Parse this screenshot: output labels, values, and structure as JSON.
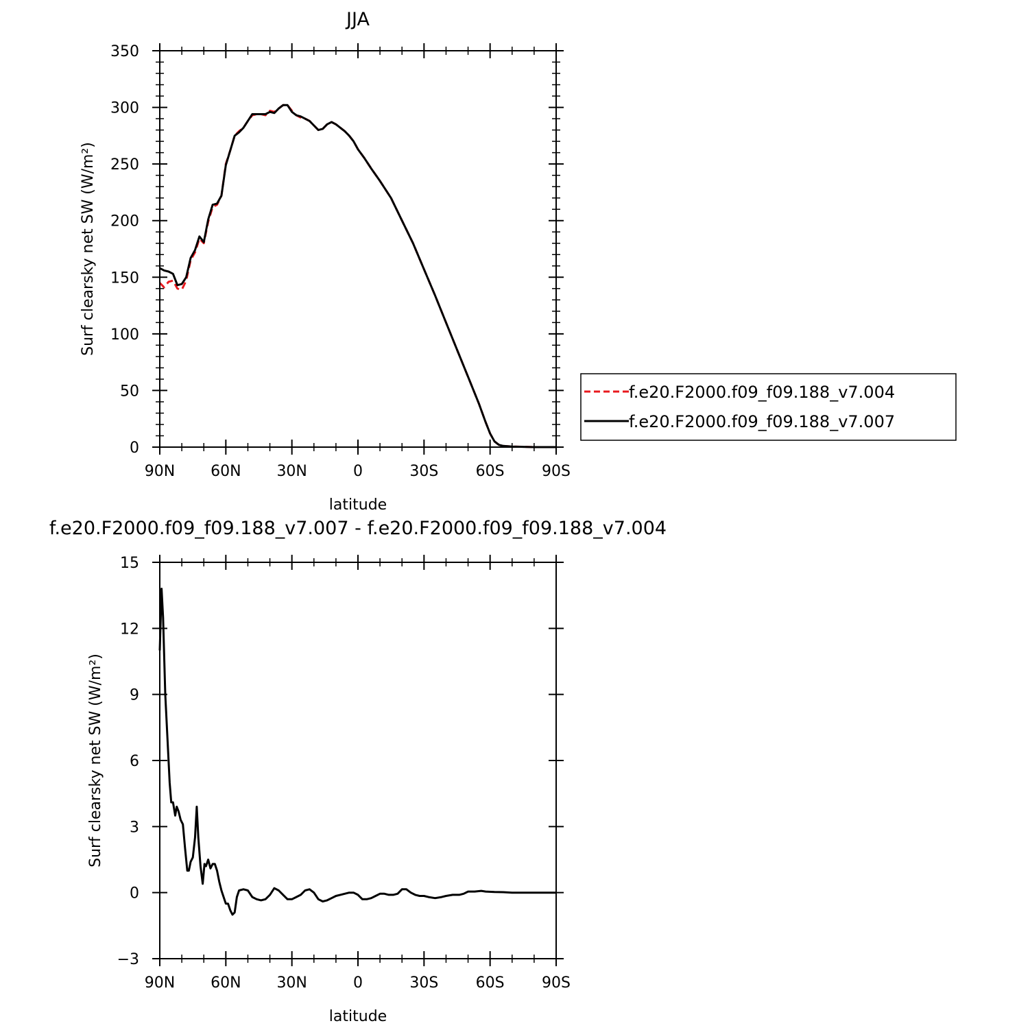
{
  "chart_data": [
    {
      "type": "line",
      "title": "JJA",
      "xlabel": "latitude",
      "ylabel": "Surf clearsky net SW (W/m²)",
      "xlim": [
        90,
        -90
      ],
      "ylim": [
        0,
        350
      ],
      "x_ticks": [
        {
          "value": 90,
          "label": "90N"
        },
        {
          "value": 60,
          "label": "60N"
        },
        {
          "value": 30,
          "label": "30N"
        },
        {
          "value": 0,
          "label": "0"
        },
        {
          "value": -30,
          "label": "30S"
        },
        {
          "value": -60,
          "label": "60S"
        },
        {
          "value": -90,
          "label": "90S"
        }
      ],
      "y_ticks": [
        0,
        50,
        100,
        150,
        200,
        250,
        300,
        350
      ],
      "y_tick_labels": [
        "0",
        "50",
        "100",
        "150",
        "200",
        "250",
        "300",
        "350"
      ],
      "legend_position": "right",
      "series": [
        {
          "name": "f.e20.F2000.f09_f09.188_v7.004",
          "color": "#e8191e",
          "style": "dashed",
          "points": [
            [
              90,
              145
            ],
            [
              88,
              141
            ],
            [
              86,
              146
            ],
            [
              84,
              147
            ],
            [
              82,
              140
            ],
            [
              80,
              139
            ],
            [
              78,
              147
            ],
            [
              76,
              165
            ],
            [
              74,
              172
            ],
            [
              72,
              184
            ],
            [
              70,
              180
            ],
            [
              68,
              199
            ],
            [
              66,
              212
            ],
            [
              64,
              214
            ],
            [
              62,
              222
            ],
            [
              60,
              250
            ],
            [
              58,
              262
            ],
            [
              56,
              275
            ],
            [
              54,
              279
            ],
            [
              52,
              282
            ],
            [
              50,
              288
            ],
            [
              48,
              293
            ],
            [
              46,
              294
            ],
            [
              44,
              294
            ],
            [
              42,
              293
            ],
            [
              40,
              297
            ],
            [
              38,
              296
            ],
            [
              36,
              299
            ],
            [
              34,
              302
            ],
            [
              32,
              302
            ],
            [
              30,
              297
            ],
            [
              28,
              293
            ],
            [
              26,
              291
            ],
            [
              24,
              290
            ],
            [
              22,
              288
            ],
            [
              20,
              284
            ],
            [
              18,
              280
            ],
            [
              16,
              281
            ],
            [
              14,
              285
            ],
            [
              12,
              287
            ],
            [
              10,
              285
            ],
            [
              8,
              282
            ],
            [
              6,
              279
            ],
            [
              4,
              275
            ],
            [
              2,
              270
            ],
            [
              0,
              263
            ],
            [
              -3,
              255
            ],
            [
              -6,
              246
            ],
            [
              -10,
              235
            ],
            [
              -15,
              220
            ],
            [
              -20,
              200
            ],
            [
              -25,
              180
            ],
            [
              -30,
              157
            ],
            [
              -35,
              134
            ],
            [
              -40,
              110
            ],
            [
              -45,
              86
            ],
            [
              -50,
              62
            ],
            [
              -55,
              38
            ],
            [
              -58,
              22
            ],
            [
              -60,
              12
            ],
            [
              -62,
              5
            ],
            [
              -64,
              2
            ],
            [
              -66,
              1
            ],
            [
              -70,
              0.5
            ],
            [
              -80,
              0
            ],
            [
              -90,
              0
            ]
          ]
        },
        {
          "name": "f.e20.F2000.f09_f09.188_v7.007",
          "color": "#000000",
          "style": "solid",
          "points": [
            [
              90,
              158
            ],
            [
              88,
              156
            ],
            [
              86,
              155
            ],
            [
              84,
              153
            ],
            [
              82,
              143
            ],
            [
              80,
              144
            ],
            [
              78,
              150
            ],
            [
              76,
              167
            ],
            [
              74,
              174
            ],
            [
              72,
              186
            ],
            [
              70,
              181
            ],
            [
              68,
              201
            ],
            [
              66,
              214
            ],
            [
              64,
              215
            ],
            [
              62,
              222
            ],
            [
              60,
              249
            ],
            [
              58,
              262
            ],
            [
              56,
              275
            ],
            [
              54,
              278
            ],
            [
              52,
              282
            ],
            [
              50,
              288
            ],
            [
              48,
              294
            ],
            [
              46,
              294
            ],
            [
              44,
              294
            ],
            [
              42,
              294
            ],
            [
              40,
              296
            ],
            [
              38,
              295
            ],
            [
              36,
              299
            ],
            [
              34,
              302
            ],
            [
              32,
              302
            ],
            [
              30,
              296
            ],
            [
              28,
              293
            ],
            [
              26,
              292
            ],
            [
              24,
              290
            ],
            [
              22,
              288
            ],
            [
              20,
              284
            ],
            [
              18,
              280
            ],
            [
              16,
              281
            ],
            [
              14,
              285
            ],
            [
              12,
              287
            ],
            [
              10,
              285
            ],
            [
              8,
              282
            ],
            [
              6,
              279
            ],
            [
              4,
              275
            ],
            [
              2,
              270
            ],
            [
              0,
              263
            ],
            [
              -3,
              255
            ],
            [
              -6,
              246
            ],
            [
              -10,
              235
            ],
            [
              -15,
              220
            ],
            [
              -20,
              200
            ],
            [
              -25,
              180
            ],
            [
              -30,
              157
            ],
            [
              -35,
              134
            ],
            [
              -40,
              110
            ],
            [
              -45,
              86
            ],
            [
              -50,
              62
            ],
            [
              -55,
              38
            ],
            [
              -58,
              22
            ],
            [
              -60,
              12
            ],
            [
              -62,
              5
            ],
            [
              -64,
              2
            ],
            [
              -66,
              1
            ],
            [
              -70,
              0.5
            ],
            [
              -80,
              0
            ],
            [
              -90,
              0
            ]
          ]
        }
      ]
    },
    {
      "type": "line",
      "title": "f.e20.F2000.f09_f09.188_v7.007 - f.e20.F2000.f09_f09.188_v7.004",
      "xlabel": "latitude",
      "ylabel": "Surf clearsky net SW (W/m²)",
      "xlim": [
        90,
        -90
      ],
      "ylim": [
        -3,
        15
      ],
      "x_ticks": [
        {
          "value": 90,
          "label": "90N"
        },
        {
          "value": 60,
          "label": "60N"
        },
        {
          "value": 30,
          "label": "30N"
        },
        {
          "value": 0,
          "label": "0"
        },
        {
          "value": -30,
          "label": "30S"
        },
        {
          "value": -60,
          "label": "60S"
        },
        {
          "value": -90,
          "label": "90S"
        }
      ],
      "y_ticks": [
        -3,
        0,
        3,
        6,
        9,
        12,
        15
      ],
      "y_tick_labels": [
        "−3",
        "0",
        "3",
        "6",
        "9",
        "12",
        "15"
      ],
      "series": [
        {
          "color": "#000000",
          "style": "solid",
          "points": [
            [
              90,
              11
            ],
            [
              89.2,
              13.8
            ],
            [
              88.5,
              12.5
            ],
            [
              87.5,
              9
            ],
            [
              86.5,
              7
            ],
            [
              85.5,
              5
            ],
            [
              84.8,
              4.1
            ],
            [
              84,
              4.1
            ],
            [
              83,
              3.5
            ],
            [
              82.3,
              3.9
            ],
            [
              81.5,
              3.7
            ],
            [
              80.5,
              3.3
            ],
            [
              79.5,
              3.1
            ],
            [
              78.5,
              2
            ],
            [
              77.5,
              1
            ],
            [
              76.8,
              1
            ],
            [
              76,
              1.4
            ],
            [
              75,
              1.6
            ],
            [
              74,
              2.5
            ],
            [
              73.2,
              3.9
            ],
            [
              72.5,
              2.5
            ],
            [
              71.5,
              1.2
            ],
            [
              70.5,
              0.4
            ],
            [
              69.7,
              1.3
            ],
            [
              69,
              1.2
            ],
            [
              68,
              1.5
            ],
            [
              67,
              1.1
            ],
            [
              66,
              1.3
            ],
            [
              65,
              1.3
            ],
            [
              64,
              1
            ],
            [
              63,
              0.5
            ],
            [
              62,
              0.1
            ],
            [
              61,
              -0.2
            ],
            [
              60,
              -0.5
            ],
            [
              59,
              -0.5
            ],
            [
              58,
              -0.8
            ],
            [
              57,
              -1
            ],
            [
              56,
              -0.9
            ],
            [
              55,
              -0.2
            ],
            [
              54,
              0.1
            ],
            [
              52,
              0.15
            ],
            [
              50,
              0.1
            ],
            [
              48,
              -0.2
            ],
            [
              46,
              -0.3
            ],
            [
              44,
              -0.35
            ],
            [
              42,
              -0.3
            ],
            [
              40,
              -0.1
            ],
            [
              38,
              0.2
            ],
            [
              36,
              0.1
            ],
            [
              34,
              -0.1
            ],
            [
              32,
              -0.3
            ],
            [
              30,
              -0.3
            ],
            [
              28,
              -0.2
            ],
            [
              26,
              -0.1
            ],
            [
              24,
              0.1
            ],
            [
              22,
              0.15
            ],
            [
              20,
              0
            ],
            [
              18,
              -0.3
            ],
            [
              16,
              -0.4
            ],
            [
              14,
              -0.35
            ],
            [
              12,
              -0.25
            ],
            [
              10,
              -0.15
            ],
            [
              8,
              -0.1
            ],
            [
              6,
              -0.05
            ],
            [
              4,
              0
            ],
            [
              2,
              0
            ],
            [
              0,
              -0.1
            ],
            [
              -2,
              -0.3
            ],
            [
              -4,
              -0.3
            ],
            [
              -6,
              -0.25
            ],
            [
              -8,
              -0.15
            ],
            [
              -10,
              -0.05
            ],
            [
              -12,
              -0.05
            ],
            [
              -14,
              -0.1
            ],
            [
              -16,
              -0.1
            ],
            [
              -18,
              -0.05
            ],
            [
              -20,
              0.15
            ],
            [
              -22,
              0.15
            ],
            [
              -24,
              0
            ],
            [
              -26,
              -0.1
            ],
            [
              -28,
              -0.15
            ],
            [
              -30,
              -0.15
            ],
            [
              -32,
              -0.2
            ],
            [
              -35,
              -0.25
            ],
            [
              -38,
              -0.2
            ],
            [
              -40,
              -0.15
            ],
            [
              -43,
              -0.1
            ],
            [
              -46,
              -0.1
            ],
            [
              -48,
              -0.05
            ],
            [
              -50,
              0.05
            ],
            [
              -53,
              0.05
            ],
            [
              -56,
              0.08
            ],
            [
              -58,
              0.05
            ],
            [
              -62,
              0.03
            ],
            [
              -66,
              0.02
            ],
            [
              -70,
              0
            ],
            [
              -80,
              0
            ],
            [
              -90,
              0
            ]
          ]
        }
      ]
    }
  ]
}
